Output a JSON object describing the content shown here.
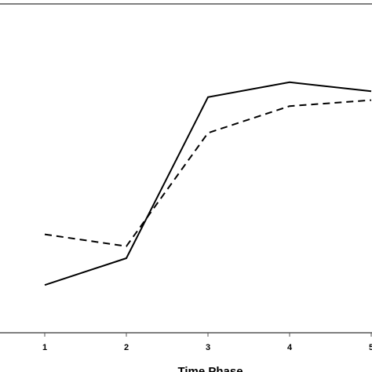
{
  "chart_data": {
    "type": "line",
    "x": [
      1,
      2,
      3,
      4,
      5
    ],
    "tick_labels": [
      "1",
      "2",
      "3",
      "4",
      "5"
    ],
    "xlabel": "Time Phase",
    "ylabel": "",
    "series": [
      {
        "line_style": "solid",
        "values": [
          0.16,
          0.25,
          0.79,
          0.84,
          0.81
        ]
      },
      {
        "line_style": "dashed",
        "values": [
          0.33,
          0.29,
          0.67,
          0.76,
          0.78
        ]
      }
    ],
    "grid": false,
    "colors": {
      "line": "#000000",
      "frame": "#555555",
      "background": "#ffffff"
    }
  }
}
